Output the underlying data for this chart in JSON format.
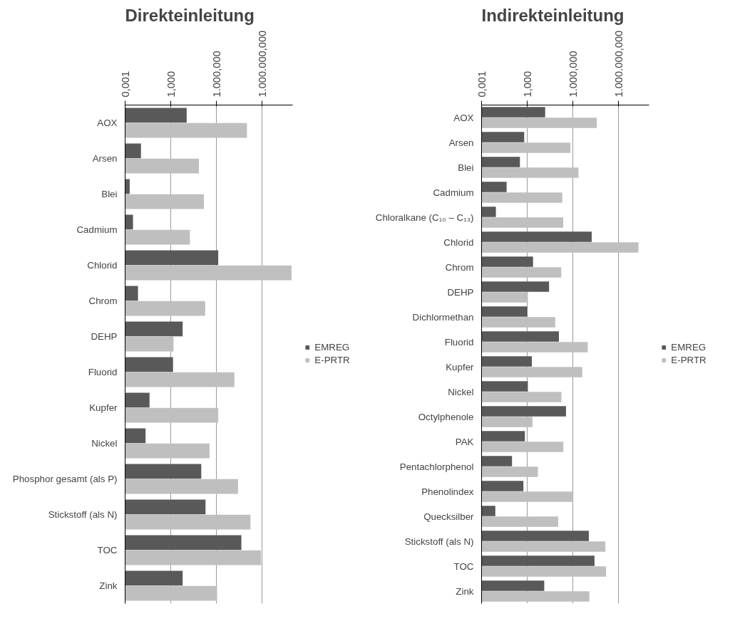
{
  "chart_data": [
    {
      "type": "bar",
      "orientation": "horizontal",
      "title": "Direkteinleitung",
      "log": "x",
      "grid": "x",
      "legend": "right",
      "categories": [
        "AOX",
        "Arsen",
        "Blei",
        "Cadmium",
        "Chlorid",
        "Chrom",
        "DEHP",
        "Fluorid",
        "Kupfer",
        "Nickel",
        "Phosphor gesamt (als P)",
        "Stickstoff (als N)",
        "TOC",
        "Zink"
      ],
      "xlim": [
        0.001,
        100000000
      ],
      "xticks": [
        {
          "value": 0.001,
          "label": "0,001"
        },
        {
          "value": 1,
          "label": "1,000"
        },
        {
          "value": 1000,
          "label": "1.000,000"
        },
        {
          "value": 1000000,
          "label": "1.000.000,000"
        }
      ],
      "series": [
        {
          "name": "EMREG",
          "color": "#595959",
          "values": [
            11,
            0.011,
            0.002,
            0.0033,
            1300,
            0.007,
            6,
            1.4,
            0.04,
            0.022,
            100,
            190,
            43000,
            6
          ]
        },
        {
          "name": "E-PRTR",
          "color": "#bfbfbf",
          "values": [
            100000,
            70,
            150,
            18,
            85000000,
            180,
            1.5,
            15000,
            1300,
            350,
            26000,
            170000,
            830000,
            1100
          ]
        }
      ]
    },
    {
      "type": "bar",
      "orientation": "horizontal",
      "title": "Indirekteinleitung",
      "log": "x",
      "grid": "x",
      "legend": "right",
      "categories": [
        "AOX",
        "Arsen",
        "Blei",
        "Cadmium",
        "Chloralkane (C₁₀ – C₁₃)",
        "Chlorid",
        "Chrom",
        "DEHP",
        "Dichlormethan",
        "Fluorid",
        "Kupfer",
        "Nickel",
        "Octylphenole",
        "PAK",
        "Pentachlorphenol",
        "Phenolindex",
        "Quecksilber",
        "Stickstoff (als N)",
        "TOC",
        "Zink"
      ],
      "xlim": [
        0.001,
        100000000
      ],
      "xticks": [
        {
          "value": 0.001,
          "label": "0,001"
        },
        {
          "value": 1,
          "label": "1,000"
        },
        {
          "value": 1000,
          "label": "1.000,000"
        },
        {
          "value": 1000000,
          "label": "1.000.000,000"
        }
      ],
      "series": [
        {
          "name": "EMREG",
          "color": "#595959",
          "values": [
            15,
            0.63,
            0.33,
            0.044,
            0.0087,
            17000,
            2.4,
            27,
            1.0,
            120,
            2,
            1.1,
            350,
            0.7,
            0.1,
            0.56,
            0.008,
            11000,
            26000,
            13
          ]
        },
        {
          "name": "E-PRTR",
          "color": "#bfbfbf",
          "values": [
            37000,
            680,
            2300,
            200,
            230,
            20000000,
            170,
            1.1,
            69,
            9300,
            4100,
            175,
            2.2,
            235,
            5,
            1070,
            107,
            135000,
            150000,
            12000
          ]
        }
      ]
    }
  ]
}
